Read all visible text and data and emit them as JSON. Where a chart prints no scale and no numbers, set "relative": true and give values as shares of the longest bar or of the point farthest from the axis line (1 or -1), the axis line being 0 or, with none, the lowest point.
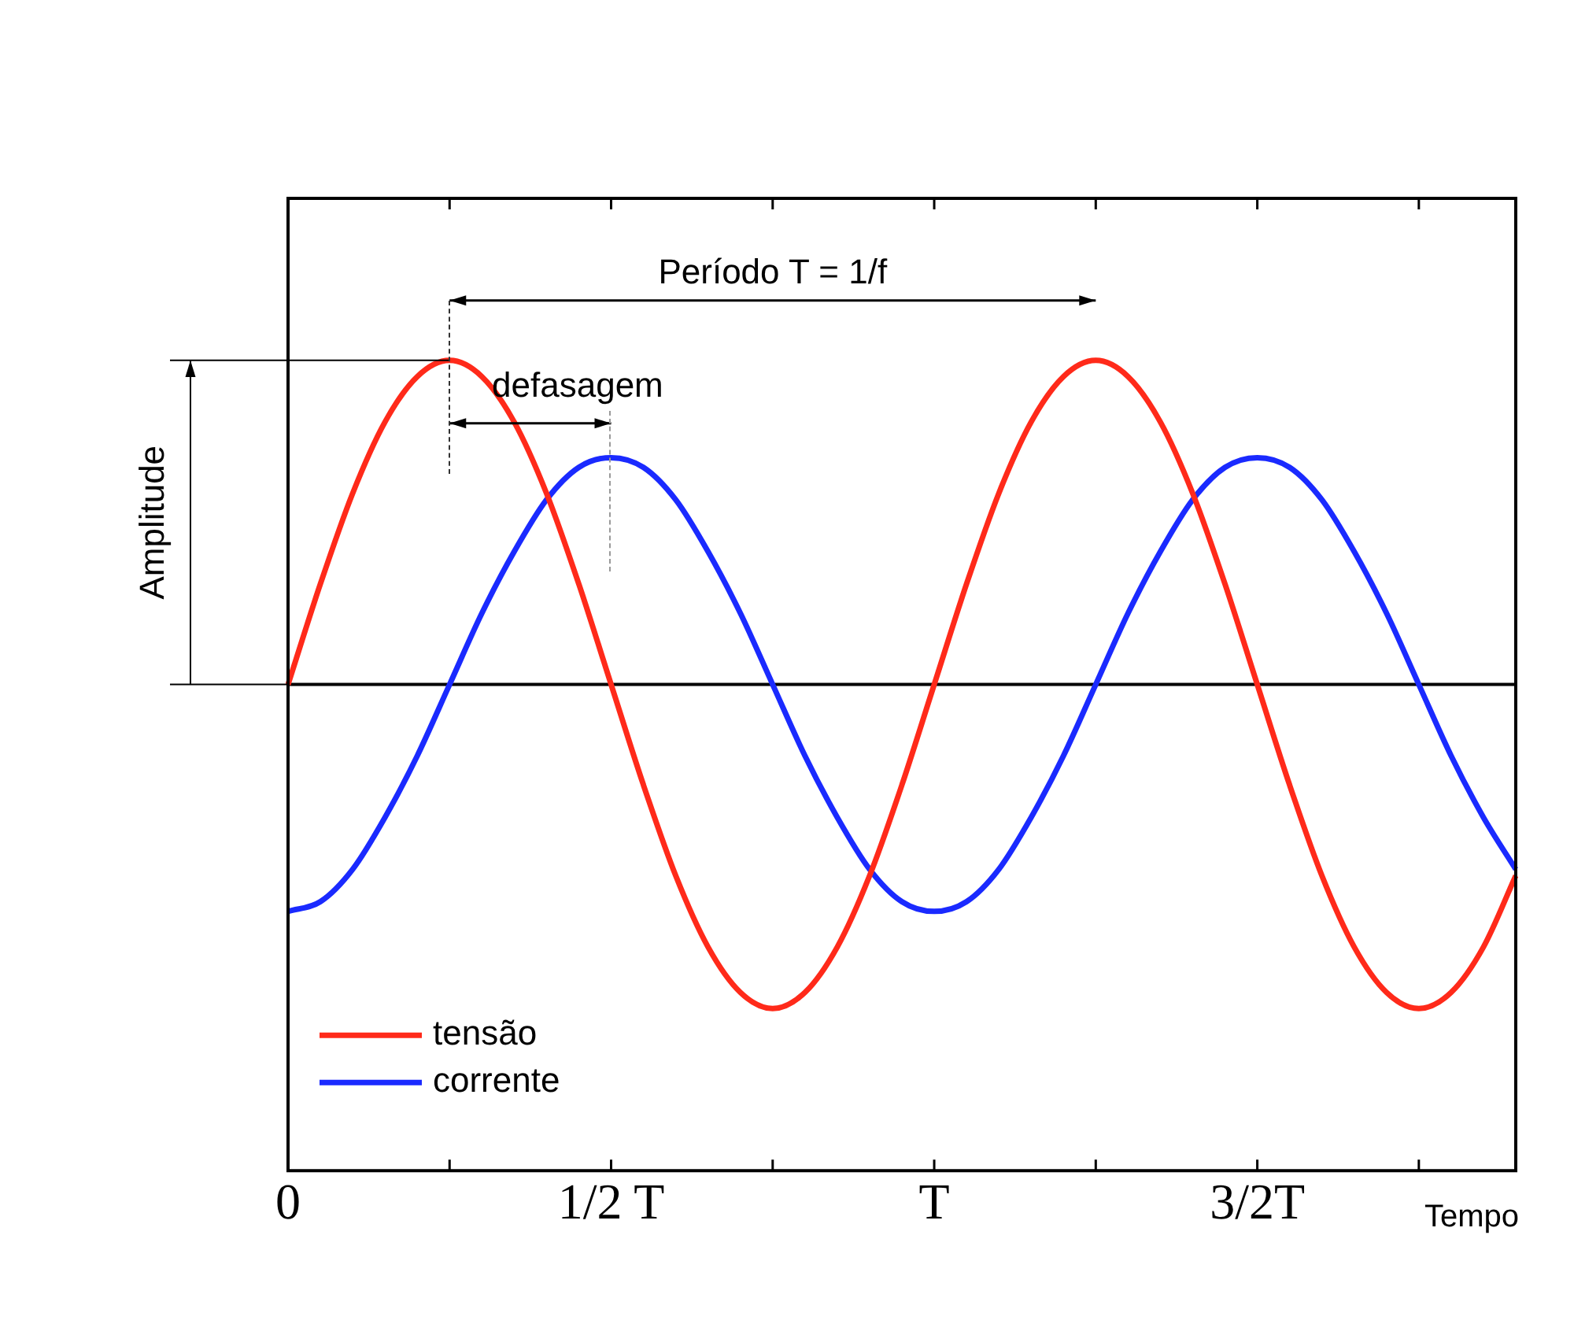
{
  "chart_data": {
    "type": "line",
    "relative": true,
    "ylabel": "Amplitude",
    "xlabel": "Tempo",
    "categories": [
      "0",
      null,
      null,
      null,
      null,
      null,
      null,
      null,
      null,
      null,
      "1/2 T",
      null,
      null,
      null,
      null,
      null,
      null,
      null,
      null,
      null,
      "T",
      null,
      null,
      null,
      null,
      null,
      null,
      null,
      null,
      null,
      "3/2T",
      null,
      null,
      null,
      null,
      null,
      null,
      null,
      null
    ],
    "series": [
      {
        "name": "tensão",
        "color": "#ff2a1a",
        "values": [
          0,
          0.31,
          0.59,
          0.81,
          0.95,
          1,
          0.95,
          0.81,
          0.59,
          0.31,
          0,
          -0.31,
          -0.59,
          -0.81,
          -0.95,
          -1,
          -0.95,
          -0.81,
          -0.59,
          -0.31,
          0,
          0.31,
          0.59,
          0.81,
          0.95,
          1,
          0.95,
          0.81,
          0.59,
          0.31,
          0,
          -0.31,
          -0.59,
          -0.81,
          -0.95,
          -1,
          -0.95,
          -0.81,
          -0.59
        ]
      },
      {
        "name": "corrente",
        "color": "#1a2aff",
        "values": [
          -0.7,
          -0.67,
          -0.57,
          -0.41,
          -0.22,
          0,
          0.22,
          0.41,
          0.57,
          0.67,
          0.7,
          0.67,
          0.57,
          0.41,
          0.22,
          0,
          -0.22,
          -0.41,
          -0.57,
          -0.67,
          -0.7,
          -0.67,
          -0.57,
          -0.41,
          -0.22,
          0,
          0.22,
          0.41,
          0.57,
          0.67,
          0.7,
          0.67,
          0.57,
          0.41,
          0.22,
          0,
          -0.22,
          -0.41,
          -0.57
        ]
      }
    ],
    "annotations": [
      "Período T = 1/f",
      "defasagem"
    ],
    "legend": "bottom left",
    "grid": false,
    "marker": "none",
    "line_style": "solid"
  }
}
